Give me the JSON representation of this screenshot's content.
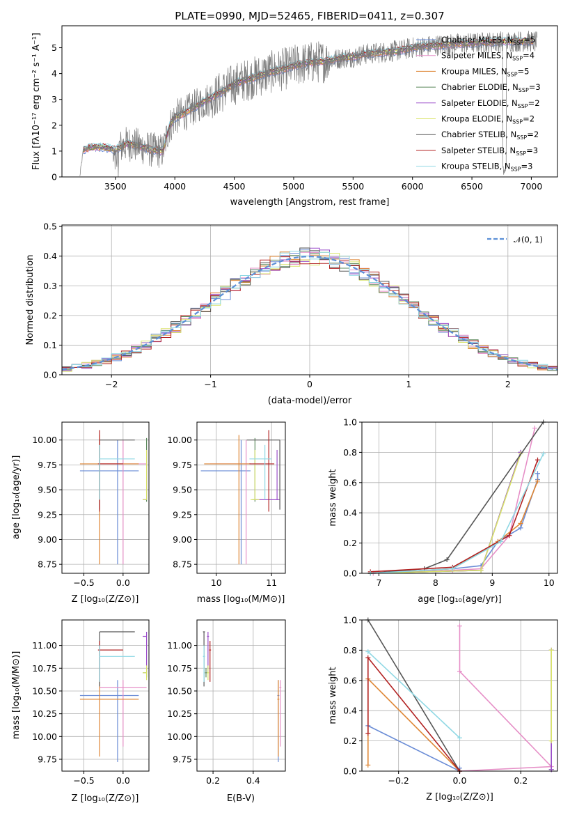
{
  "figure": {
    "title": "PLATE=0990, MJD=52465, FIBERID=0411, z=0.307"
  },
  "colors": {
    "Chabrier MILES": "#6a8cd6",
    "Salpeter MILES": "#e68fc7",
    "Kroupa MILES": "#de8533",
    "Chabrier ELODIE": "#5d8a5d",
    "Salpeter ELODIE": "#9b4dca",
    "Kroupa ELODIE": "#d9e46a",
    "Chabrier STELIB": "#555555",
    "Salpeter STELIB": "#b22222",
    "Kroupa STELIB": "#8fd8e4"
  },
  "chart_data": [
    {
      "id": "spectrum",
      "type": "line",
      "xlabel": "wavelength [Angstrom, rest frame]",
      "ylabel": "Flux [f_λ 10^-17 erg cm^-2 s^-1 A^-1]",
      "xlim": [
        3050,
        7220
      ],
      "ylim": [
        0,
        5.85
      ],
      "xticks": [
        3500,
        4000,
        4500,
        5000,
        5500,
        6000,
        6500,
        7000
      ],
      "yticks": [
        0,
        1,
        2,
        3,
        4,
        5
      ],
      "legend_position": "top-right",
      "legend": [
        {
          "name": "Chabrier MILES",
          "nssp": "5"
        },
        {
          "name": "Salpeter MILES",
          "nssp": "4"
        },
        {
          "name": "Kroupa MILES",
          "nssp": "5"
        },
        {
          "name": "Chabrier ELODIE",
          "nssp": "3"
        },
        {
          "name": "Salpeter ELODIE",
          "nssp": "2"
        },
        {
          "name": "Kroupa ELODIE",
          "nssp": "2"
        },
        {
          "name": "Chabrier STELIB",
          "nssp": "2"
        },
        {
          "name": "Salpeter STELIB",
          "nssp": "3"
        },
        {
          "name": "Kroupa STELIB",
          "nssp": "3"
        }
      ],
      "data_continuum": {
        "x": [
          3200,
          3230,
          3300,
          3400,
          3500,
          3600,
          3700,
          3800,
          3900,
          3950,
          4000,
          4100,
          4200,
          4300,
          4400,
          4500,
          4600,
          4700,
          4800,
          4900,
          5000,
          5100,
          5200,
          5300,
          5400,
          5500,
          5600,
          5700,
          5800,
          5900,
          6000,
          6200,
          6400,
          6600,
          6800,
          7000,
          7050
        ],
        "y": [
          0,
          1.05,
          1.15,
          1.15,
          1.05,
          1.3,
          1.2,
          1.05,
          1.0,
          1.9,
          2.3,
          2.5,
          2.8,
          3.05,
          3.3,
          3.6,
          3.75,
          3.9,
          4.05,
          4.15,
          4.3,
          4.4,
          4.45,
          4.5,
          4.6,
          4.65,
          4.75,
          4.8,
          4.85,
          4.9,
          5.0,
          5.1,
          5.15,
          5.2,
          5.25,
          5.25,
          5.2
        ]
      }
    },
    {
      "id": "residuals",
      "type": "line",
      "xlabel": "(data-model)/error",
      "ylabel": "Normed distribution",
      "xlim": [
        -2.5,
        2.5
      ],
      "ylim": [
        0,
        0.505
      ],
      "xticks": [
        -2,
        -1,
        0,
        1,
        2
      ],
      "yticks": [
        0.0,
        0.1,
        0.2,
        0.3,
        0.4,
        0.5
      ],
      "legend_position": "top-right",
      "legend_label": "𝒩(0, 1)",
      "bin_width": 0.1
    },
    {
      "id": "age-vs-Z",
      "type": "scatter",
      "xlabel": "Z [log10(Z/Z⊙)]",
      "ylabel": "age  [log10(age/yr)]",
      "xlim": [
        -0.78,
        0.33
      ],
      "ylim": [
        8.66,
        10.18
      ],
      "xticks": [
        -0.5,
        0.0
      ],
      "yticks": [
        8.75,
        9.0,
        9.25,
        9.5,
        9.75,
        10.0
      ]
    },
    {
      "id": "age-vs-mass",
      "type": "scatter",
      "xlabel": "mass [log10(M/M⊙)]",
      "xlim": [
        9.65,
        11.25
      ],
      "ylim": [
        8.66,
        10.18
      ],
      "xticks": [
        10,
        11
      ],
      "yticks": [
        8.75,
        9.0,
        9.25,
        9.5,
        9.75,
        10.0
      ]
    },
    {
      "id": "weight-vs-age",
      "type": "line",
      "xlabel": "age  [log10(age/yr)]",
      "ylabel": "mass weight",
      "xlim": [
        6.7,
        10.15
      ],
      "ylim": [
        0,
        1.0
      ],
      "xticks": [
        7,
        8,
        9,
        10
      ],
      "yticks": [
        0.0,
        0.2,
        0.4,
        0.6,
        0.8,
        1.0
      ]
    },
    {
      "id": "mass-vs-Z",
      "type": "scatter",
      "xlabel": "Z [log10(Z/Z⊙)]",
      "ylabel": "mass [log10(M/M⊙)]",
      "xlim": [
        -0.78,
        0.33
      ],
      "ylim": [
        9.62,
        11.28
      ],
      "xticks": [
        -0.5,
        0.0
      ],
      "yticks": [
        9.75,
        10.0,
        10.25,
        10.5,
        10.75,
        11.0
      ]
    },
    {
      "id": "mass-vs-ebv",
      "type": "scatter",
      "xlabel": "E(B-V)",
      "xlim": [
        0.12,
        0.56
      ],
      "ylim": [
        9.62,
        11.28
      ],
      "xticks": [
        0.2,
        0.4
      ],
      "yticks": [
        9.75,
        10.0,
        10.25,
        10.5,
        10.75,
        11.0
      ]
    },
    {
      "id": "weight-vs-Z",
      "type": "line",
      "xlabel": "Z [log10(Z/Z⊙)]",
      "ylabel": "mass weight",
      "xlim": [
        -0.32,
        0.32
      ],
      "ylim": [
        0,
        1.0
      ],
      "xticks": [
        -0.2,
        0.0,
        0.2
      ],
      "yticks": [
        0.0,
        0.2,
        0.4,
        0.6,
        0.8,
        1.0
      ]
    }
  ],
  "models": {
    "Chabrier MILES": {
      "Z": [
        -0.55,
        0.2
      ],
      "Zc": -0.07,
      "age": [
        8.75,
        10.0
      ],
      "agec": 9.69,
      "mass": [
        9.72,
        10.62
      ],
      "massc": 10.45,
      "ebv": [
        0.52,
        0.53
      ],
      "wage": [
        [
          6.85,
          0.0
        ],
        [
          8.3,
          0.03
        ],
        [
          8.8,
          0.05
        ],
        [
          9.1,
          0.21
        ],
        [
          9.5,
          0.3
        ],
        [
          9.8,
          0.62
        ],
        [
          9.8,
          0.66
        ]
      ],
      "wZ": [
        [
          -0.3,
          0.3
        ],
        [
          0.0,
          0.0
        ],
        [
          0.0,
          0.02
        ]
      ]
    },
    "Salpeter MILES": {
      "Z": [
        -0.3,
        0.3
      ],
      "Zc": 0.0,
      "age": [
        8.75,
        10.0
      ],
      "agec": 9.76,
      "mass": [
        9.89,
        10.62
      ],
      "massc": 10.54,
      "ebv": [
        0.53,
        0.54
      ],
      "wage": [
        [
          6.9,
          0.0
        ],
        [
          8.3,
          0.02
        ],
        [
          8.8,
          0.03
        ],
        [
          9.3,
          0.25
        ],
        [
          9.75,
          0.96
        ]
      ],
      "wZ": [
        [
          0.0,
          0.0
        ],
        [
          0.3,
          0.03
        ],
        [
          0.0,
          0.66
        ],
        [
          0.0,
          0.96
        ]
      ]
    },
    "Kroupa MILES": {
      "Z": [
        -0.55,
        0.2
      ],
      "Zc": -0.3,
      "age": [
        8.75,
        10.05
      ],
      "agec": 9.76,
      "mass": [
        9.78,
        10.62
      ],
      "massc": 10.41,
      "ebv": [
        0.52,
        0.53
      ],
      "wage": [
        [
          6.85,
          0.0
        ],
        [
          8.3,
          0.03
        ],
        [
          9.1,
          0.21
        ],
        [
          9.5,
          0.33
        ],
        [
          9.8,
          0.61
        ]
      ],
      "wZ": [
        [
          -0.3,
          0.04
        ],
        [
          -0.3,
          0.61
        ],
        [
          0.0,
          0.0
        ]
      ]
    },
    "Chabrier ELODIE": {
      "Z": [
        0.25,
        0.3
      ],
      "Zc": 0.3,
      "age": [
        9.38,
        10.02
      ],
      "agec": 9.4,
      "mass": [
        10.65,
        10.75
      ],
      "massc": 10.7,
      "ebv": [
        0.16,
        0.17
      ],
      "wage": [
        [
          6.85,
          0.0
        ],
        [
          8.8,
          0.02
        ],
        [
          9.5,
          0.8
        ]
      ],
      "wZ": [
        [
          0.3,
          0.01
        ],
        [
          0.3,
          0.8
        ]
      ]
    },
    "Salpeter ELODIE": {
      "Z": [
        0.25,
        0.3
      ],
      "Zc": 0.3,
      "age": [
        9.4,
        9.9
      ],
      "agec": 9.4,
      "mass": [
        10.7,
        11.15
      ],
      "massc": 11.1,
      "ebv": [
        0.17,
        0.18
      ],
      "wage": [
        [
          6.85,
          0.0
        ],
        [
          8.8,
          0.02
        ],
        [
          9.5,
          0.8
        ]
      ],
      "wZ": [
        [
          0.3,
          0.01
        ],
        [
          0.3,
          0.8
        ]
      ]
    },
    "Kroupa ELODIE": {
      "Z": [
        0.25,
        0.3
      ],
      "Zc": 0.3,
      "age": [
        9.4,
        9.9
      ],
      "agec": 9.4,
      "mass": [
        10.62,
        10.78
      ],
      "massc": 10.7,
      "ebv": [
        0.17,
        0.18
      ],
      "wage": [
        [
          6.85,
          0.0
        ],
        [
          8.8,
          0.02
        ],
        [
          9.5,
          0.79
        ]
      ],
      "wZ": [
        [
          0.3,
          0.2
        ],
        [
          0.3,
          0.8
        ]
      ]
    },
    "Chabrier STELIB": {
      "Z": [
        -0.3,
        0.15
      ],
      "Zc": -0.3,
      "age": [
        9.3,
        10.0
      ],
      "agec": 10.0,
      "mass": [
        10.55,
        11.15
      ],
      "massc": 11.15,
      "ebv": [
        0.15,
        0.16
      ],
      "wage": [
        [
          6.85,
          0.0
        ],
        [
          7.8,
          0.03
        ],
        [
          8.2,
          0.09
        ],
        [
          9.9,
          1.0
        ]
      ],
      "wZ": [
        [
          -0.3,
          1.0
        ],
        [
          0.0,
          0.0
        ]
      ]
    },
    "Salpeter STELIB": {
      "Z": [
        -0.32,
        0.0
      ],
      "Zc": -0.3,
      "age": [
        9.28,
        10.1
      ],
      "agec": 9.76,
      "mass": [
        10.6,
        11.05
      ],
      "massc": 10.95,
      "ebv": [
        0.18,
        0.19
      ],
      "wage": [
        [
          6.85,
          0.01
        ],
        [
          8.3,
          0.04
        ],
        [
          9.3,
          0.25
        ],
        [
          9.8,
          0.75
        ]
      ],
      "wZ": [
        [
          -0.3,
          0.25
        ],
        [
          -0.3,
          0.75
        ],
        [
          0.0,
          0.0
        ]
      ]
    },
    "Kroupa STELIB": {
      "Z": [
        -0.3,
        0.15
      ],
      "Zc": -0.3,
      "age": [
        9.4,
        9.95
      ],
      "agec": 9.81,
      "mass": [
        10.6,
        11.0
      ],
      "massc": 10.88,
      "ebv": [
        0.15,
        0.16
      ],
      "wage": [
        [
          6.85,
          0.0
        ],
        [
          8.3,
          0.03
        ],
        [
          9.15,
          0.21
        ],
        [
          9.9,
          0.79
        ]
      ],
      "wZ": [
        [
          -0.3,
          0.79
        ],
        [
          0.0,
          0.22
        ]
      ]
    }
  }
}
